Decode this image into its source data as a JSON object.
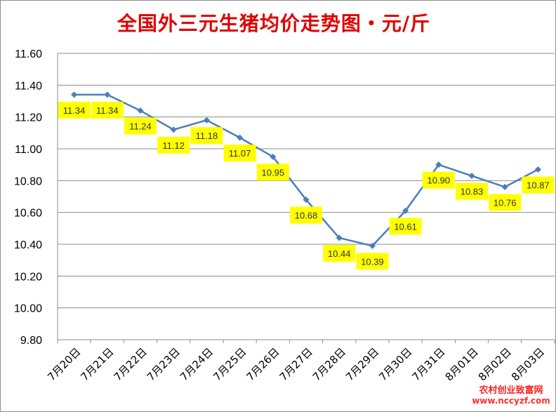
{
  "chart_data": {
    "type": "line",
    "title": "全国外三元生猪均价走势图・元/斤",
    "categories": [
      "7月20日",
      "7月21日",
      "7月22日",
      "7月23日",
      "7月24日",
      "7月25日",
      "7月26日",
      "7月27日",
      "7月28日",
      "7月29日",
      "7月30日",
      "7月31日",
      "8月01日",
      "8月02日",
      "8月03日"
    ],
    "series": [
      {
        "values": [
          11.34,
          11.34,
          11.24,
          11.12,
          11.18,
          11.07,
          10.95,
          10.68,
          10.44,
          10.39,
          10.61,
          10.9,
          10.83,
          10.76,
          10.87
        ]
      }
    ],
    "data_labels": [
      "11.34",
      "11.34",
      "11.24",
      "11.12",
      "11.18",
      "11.07",
      "10.95",
      "10.68",
      "10.44",
      "10.39",
      "10.61",
      "10.90",
      "10.83",
      "10.76",
      "10.87"
    ],
    "y_ticks": [
      "9.80",
      "10.00",
      "10.20",
      "10.40",
      "10.60",
      "10.80",
      "11.00",
      "11.20",
      "11.40",
      "11.60"
    ],
    "ylim": [
      9.8,
      11.6
    ],
    "grid": true,
    "line_color": "#4a7ebb",
    "label_bg_color": "#ffff00"
  },
  "watermark": {
    "name": "农村创业致富网",
    "domain": "www.nccyzf.com"
  }
}
